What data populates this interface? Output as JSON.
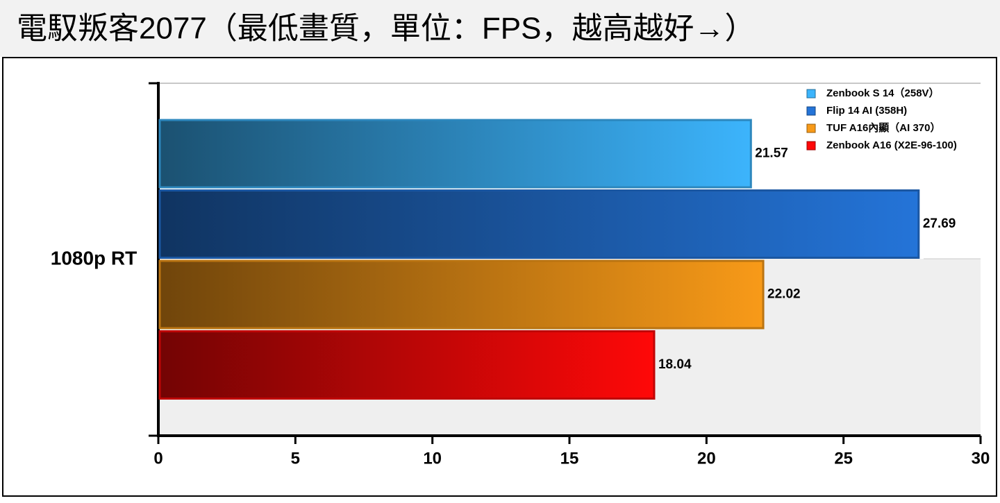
{
  "chart_data": {
    "type": "bar",
    "orientation": "horizontal",
    "title": "電馭叛客2077（最低畫質，單位：FPS，越高越好→）",
    "categories": [
      "1080p RT"
    ],
    "series": [
      {
        "name": "Zenbook S 14（258V）",
        "color": "#3cb4fc",
        "values": [
          21.57
        ]
      },
      {
        "name": "Flip 14 AI (358H)",
        "color": "#2474d8",
        "values": [
          27.69
        ]
      },
      {
        "name": "TUF A16內顯（AI 370）",
        "color": "#f89a18",
        "values": [
          22.02
        ]
      },
      {
        "name": "Zenbook A16 (X2E-96-100)",
        "color": "#ff0808",
        "values": [
          18.04
        ]
      }
    ],
    "xlim": [
      0,
      30
    ],
    "xticks": [
      0,
      5,
      10,
      15,
      20,
      25,
      30
    ],
    "legend": "upper right"
  }
}
